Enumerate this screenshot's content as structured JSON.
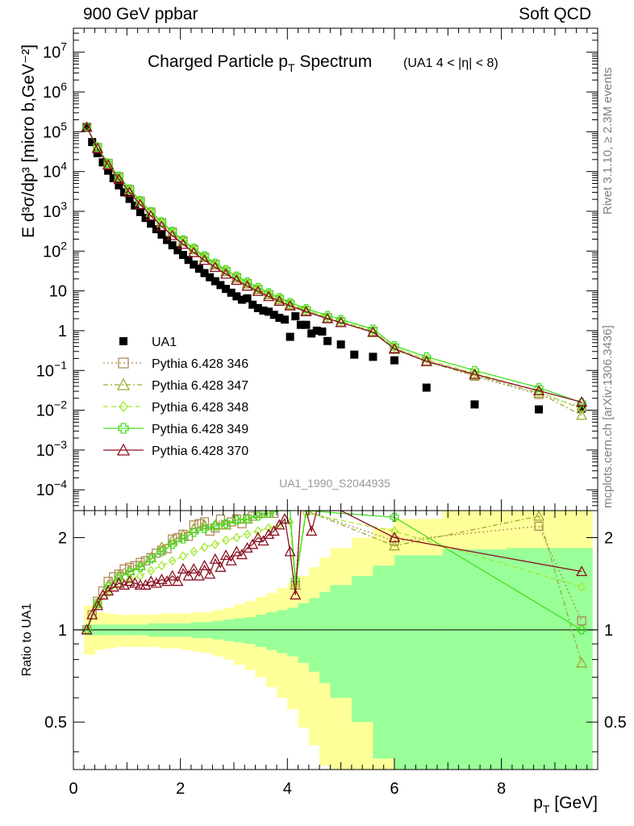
{
  "header": {
    "left": "900 GeV ppbar",
    "right": "Soft QCD"
  },
  "side_labels": {
    "rivet": "Rivet 3.1.10, ≥ 2.3M events",
    "mcplots": "mcplots.cern.ch [arXiv:1306.3436]"
  },
  "chart_data": [
    {
      "type": "scatter",
      "title": "Charged Particle p_T Spectrum",
      "subtitle": "(UA1   4 < |η| < 8)",
      "watermark": "UA1_1990_S2044935",
      "ylabel": "E d³σ/dp³ [micro b,GeV⁻²]",
      "yscale": "log",
      "xlim": [
        0,
        9.8
      ],
      "ylim": [
        3e-05,
        40000000.0
      ],
      "legend_position": "lower-left",
      "y_ticks": [
        {
          "v": 0.0001,
          "m": "10",
          "e": "−4"
        },
        {
          "v": 0.001,
          "m": "10",
          "e": "−3"
        },
        {
          "v": 0.01,
          "m": "10",
          "e": "−2"
        },
        {
          "v": 0.1,
          "m": "10",
          "e": "−1"
        },
        {
          "v": 1,
          "m": "1",
          "e": ""
        },
        {
          "v": 10,
          "m": "10",
          "e": ""
        },
        {
          "v": 100,
          "m": "10",
          "e": "2"
        },
        {
          "v": 1000,
          "m": "10",
          "e": "3"
        },
        {
          "v": 10000.0,
          "m": "10",
          "e": "4"
        },
        {
          "v": 100000.0,
          "m": "10",
          "e": "5"
        },
        {
          "v": 1000000.0,
          "m": "10",
          "e": "6"
        },
        {
          "v": 10000000.0,
          "m": "10",
          "e": "7"
        }
      ],
      "series": [
        {
          "name": "UA1",
          "marker": "filled-square",
          "color": "#000000",
          "x": [
            0.25,
            0.35,
            0.45,
            0.55,
            0.65,
            0.75,
            0.85,
            0.95,
            1.05,
            1.15,
            1.25,
            1.35,
            1.45,
            1.55,
            1.65,
            1.75,
            1.85,
            1.95,
            2.05,
            2.15,
            2.25,
            2.35,
            2.45,
            2.55,
            2.65,
            2.75,
            2.85,
            2.95,
            3.05,
            3.15,
            3.25,
            3.35,
            3.45,
            3.55,
            3.65,
            3.75,
            3.85,
            3.95,
            4.05,
            4.15,
            4.25,
            4.35,
            4.45,
            4.55,
            4.65,
            4.75,
            5.0,
            5.25,
            5.6,
            6.0,
            6.6,
            7.5,
            8.7,
            9.5
          ],
          "y": [
            130000,
            55000,
            29000,
            17000,
            10500,
            6800,
            4500,
            3000,
            2050,
            1400,
            960,
            680,
            490,
            355,
            260,
            190,
            140,
            105,
            80,
            60,
            46,
            36,
            28,
            22,
            17.5,
            14,
            11.2,
            9.0,
            7.3,
            6.0,
            6.5,
            4.5,
            3.7,
            3.2,
            3.0,
            2.5,
            2.1,
            1.9,
            0.7,
            2.3,
            1.4,
            1.4,
            0.85,
            1.0,
            0.95,
            0.55,
            0.45,
            0.25,
            0.22,
            0.18,
            0.037,
            0.014,
            0.0105,
            0.011
          ]
        },
        {
          "name": "Pythia 6.428 346",
          "marker": "open-square",
          "line": "dotted",
          "color": "#b08a58",
          "x": [
            0.25,
            0.45,
            0.65,
            0.85,
            1.05,
            1.25,
            1.45,
            1.65,
            1.85,
            2.05,
            2.25,
            2.45,
            2.65,
            2.85,
            3.05,
            3.25,
            3.45,
            3.65,
            3.85,
            4.05,
            4.35,
            4.75,
            5.0,
            5.6,
            6.0,
            6.6,
            7.5,
            8.7,
            9.5
          ],
          "y": [
            130000,
            40000,
            16000,
            7400,
            3550,
            1800,
            950,
            520,
            300,
            180,
            110,
            70,
            46,
            31,
            21.5,
            15.2,
            11,
            8.1,
            6.1,
            4.6,
            3.2,
            2.1,
            1.65,
            0.95,
            0.36,
            0.17,
            0.072,
            0.025,
            0.012
          ]
        },
        {
          "name": "Pythia 6.428 347",
          "marker": "open-triangle",
          "line": "dash-dot",
          "color": "#9aaa32",
          "x": [
            0.25,
            0.45,
            0.65,
            0.85,
            1.05,
            1.25,
            1.45,
            1.65,
            1.85,
            2.05,
            2.25,
            2.45,
            2.65,
            2.85,
            3.05,
            3.25,
            3.45,
            3.65,
            3.85,
            4.05,
            4.35,
            4.75,
            5.0,
            5.6,
            6.0,
            6.6,
            7.5,
            8.7,
            9.5
          ],
          "y": [
            130000,
            40000,
            15500,
            7200,
            3450,
            1750,
            930,
            510,
            295,
            176,
            108,
            69,
            45,
            30.5,
            21,
            15,
            10.8,
            8.0,
            6.0,
            4.5,
            3.15,
            2.05,
            1.6,
            0.9,
            0.34,
            0.165,
            0.075,
            0.027,
            0.0075
          ]
        },
        {
          "name": "Pythia 6.428 348",
          "marker": "open-diamond",
          "line": "dashed",
          "color": "#a2e830",
          "x": [
            0.25,
            0.45,
            0.65,
            0.85,
            1.05,
            1.25,
            1.45,
            1.65,
            1.85,
            2.05,
            2.25,
            2.45,
            2.65,
            2.85,
            3.05,
            3.25,
            3.45,
            3.65,
            3.85,
            4.05,
            4.35,
            4.75,
            5.0,
            5.6,
            6.0,
            6.6,
            7.5,
            8.7,
            9.5
          ],
          "y": [
            130000,
            40500,
            15800,
            7300,
            3500,
            1780,
            940,
            515,
            298,
            178,
            110,
            71,
            47,
            32,
            22,
            15.8,
            11.4,
            8.5,
            6.4,
            4.8,
            3.35,
            2.2,
            1.75,
            1.0,
            0.38,
            0.19,
            0.085,
            0.03,
            0.0105
          ]
        },
        {
          "name": "Pythia 6.428 349",
          "marker": "open-cross",
          "line": "solid",
          "color": "#44e020",
          "x": [
            0.25,
            0.45,
            0.65,
            0.85,
            1.05,
            1.25,
            1.45,
            1.65,
            1.85,
            2.05,
            2.25,
            2.45,
            2.65,
            2.85,
            3.05,
            3.25,
            3.45,
            3.65,
            3.85,
            4.05,
            4.35,
            4.75,
            5.0,
            5.6,
            6.0,
            6.6,
            7.5,
            8.7,
            9.5
          ],
          "y": [
            130000,
            41000,
            16200,
            7600,
            3650,
            1850,
            980,
            540,
            315,
            190,
            118,
            76,
            50,
            34,
            23.5,
            16.8,
            12.2,
            9.0,
            6.8,
            5.1,
            3.6,
            2.4,
            1.9,
            1.1,
            0.42,
            0.22,
            0.1,
            0.037,
            0.0155
          ]
        },
        {
          "name": "Pythia 6.428 370",
          "marker": "open-triangle",
          "line": "solid",
          "color": "#8a1020",
          "x": [
            0.25,
            0.45,
            0.65,
            0.85,
            1.05,
            1.25,
            1.45,
            1.65,
            1.85,
            2.05,
            2.25,
            2.45,
            2.65,
            2.85,
            3.05,
            3.25,
            3.45,
            3.65,
            3.85,
            4.05,
            4.35,
            4.75,
            5.0,
            5.6,
            6.0,
            6.6,
            7.5,
            8.7,
            9.5
          ],
          "y": [
            130000,
            38000,
            14500,
            6400,
            3000,
            1480,
            770,
            420,
            245,
            148,
            92,
            59,
            39,
            26.5,
            18.5,
            13.2,
            9.7,
            7.2,
            5.5,
            4.2,
            3.0,
            2.0,
            1.6,
            0.92,
            0.35,
            0.17,
            0.08,
            0.031,
            0.016
          ]
        }
      ]
    },
    {
      "type": "line",
      "ylabel": "Ratio to UA1",
      "xlabel": "p_T [GeV]",
      "xlim": [
        0,
        9.8
      ],
      "ylim": [
        0.35,
        2.45
      ],
      "yscale": "log",
      "x_ticks": [
        0,
        2,
        4,
        6,
        8
      ],
      "y_ticks": [
        0.5,
        1,
        2
      ],
      "band_edges": [
        0.2,
        0.4,
        0.6,
        0.8,
        1.0,
        1.2,
        1.4,
        1.6,
        1.8,
        2.0,
        2.2,
        2.4,
        2.6,
        2.8,
        3.0,
        3.2,
        3.4,
        3.6,
        3.8,
        4.0,
        4.2,
        4.4,
        4.6,
        4.8,
        5.2,
        5.6,
        6.0,
        6.9,
        8.1,
        9.7
      ],
      "band_inner_up": [
        1.04,
        1.04,
        1.04,
        1.04,
        1.04,
        1.04,
        1.05,
        1.05,
        1.05,
        1.05,
        1.06,
        1.06,
        1.07,
        1.08,
        1.09,
        1.1,
        1.12,
        1.14,
        1.16,
        1.18,
        1.22,
        1.27,
        1.33,
        1.4,
        1.5,
        1.62,
        1.75,
        1.83,
        1.85
      ],
      "band_inner_dn": [
        0.96,
        0.96,
        0.96,
        0.96,
        0.96,
        0.96,
        0.95,
        0.95,
        0.95,
        0.95,
        0.94,
        0.94,
        0.93,
        0.92,
        0.91,
        0.9,
        0.88,
        0.86,
        0.84,
        0.82,
        0.78,
        0.73,
        0.67,
        0.6,
        0.5,
        0.38,
        0.3,
        0.25,
        0.25
      ],
      "band_outer_up": [
        1.2,
        1.14,
        1.13,
        1.12,
        1.12,
        1.12,
        1.12,
        1.13,
        1.13,
        1.13,
        1.14,
        1.14,
        1.16,
        1.18,
        1.21,
        1.24,
        1.28,
        1.32,
        1.37,
        1.42,
        1.5,
        1.6,
        1.72,
        1.85,
        2.0,
        2.15,
        2.3,
        2.5,
        2.5
      ],
      "band_outer_dn": [
        0.83,
        0.86,
        0.87,
        0.88,
        0.88,
        0.88,
        0.88,
        0.87,
        0.87,
        0.86,
        0.85,
        0.84,
        0.82,
        0.8,
        0.77,
        0.74,
        0.7,
        0.65,
        0.6,
        0.55,
        0.48,
        0.42,
        0.36,
        0.3,
        0.25,
        0.25,
        0.25,
        0.25,
        0.25
      ],
      "band_inner_color": "#99ff99",
      "band_outer_color": "#ffff99",
      "series": [
        {
          "name": "Pythia 6.428 346",
          "x": [
            0.25,
            0.35,
            0.45,
            0.55,
            0.65,
            0.75,
            0.85,
            0.95,
            1.05,
            1.15,
            1.25,
            1.35,
            1.45,
            1.55,
            1.65,
            1.75,
            1.85,
            1.95,
            2.05,
            2.15,
            2.25,
            2.35,
            2.45,
            2.55,
            2.65,
            2.75,
            2.85,
            2.95,
            3.05,
            3.15,
            3.25,
            3.35,
            3.45,
            3.55,
            3.65,
            3.75,
            3.85,
            3.95,
            4.05,
            4.15,
            4.25,
            4.35,
            6.0,
            8.7,
            9.5
          ],
          "y": [
            1.0,
            1.12,
            1.24,
            1.34,
            1.44,
            1.49,
            1.52,
            1.58,
            1.6,
            1.62,
            1.66,
            1.68,
            1.72,
            1.78,
            1.82,
            1.84,
            1.98,
            2.0,
            2.05,
            2.02,
            2.2,
            2.22,
            2.25,
            2.1,
            2.15,
            2.3,
            2.2,
            2.25,
            2.3,
            2.22,
            2.3,
            2.35,
            2.4,
            2.4,
            2.4,
            2.4,
            2.45,
            2.45,
            2.45,
            1.4,
            2.45,
            2.45,
            1.95,
            2.18,
            1.07
          ]
        },
        {
          "name": "Pythia 6.428 347",
          "x": [
            0.25,
            0.45,
            0.65,
            0.85,
            1.05,
            1.25,
            1.45,
            1.65,
            1.85,
            2.05,
            2.25,
            2.45,
            2.65,
            2.85,
            3.05,
            3.25,
            3.45,
            3.65,
            3.85,
            4.05,
            4.15,
            4.35,
            6.0,
            8.7,
            9.5
          ],
          "y": [
            1.0,
            1.22,
            1.4,
            1.5,
            1.56,
            1.62,
            1.72,
            1.86,
            1.96,
            2.04,
            2.14,
            2.2,
            2.2,
            2.2,
            2.3,
            2.3,
            2.4,
            2.4,
            2.45,
            2.45,
            1.4,
            2.45,
            1.88,
            2.35,
            0.78
          ]
        },
        {
          "name": "Pythia 6.428 348",
          "x": [
            0.25,
            0.45,
            0.65,
            0.85,
            1.05,
            1.25,
            1.45,
            1.65,
            1.85,
            2.05,
            2.25,
            2.45,
            2.65,
            2.85,
            3.05,
            3.25,
            3.45,
            3.65,
            3.85,
            4.05,
            4.15,
            4.35,
            6.0,
            9.5
          ],
          "y": [
            1.0,
            1.2,
            1.32,
            1.42,
            1.46,
            1.5,
            1.56,
            1.62,
            1.68,
            1.74,
            1.8,
            1.86,
            1.9,
            1.96,
            2.0,
            2.05,
            2.1,
            2.15,
            2.2,
            2.25,
            1.4,
            2.4,
            2.1,
            1.38
          ]
        },
        {
          "name": "Pythia 6.428 349",
          "x": [
            0.25,
            0.45,
            0.65,
            0.85,
            1.05,
            1.25,
            1.45,
            1.65,
            1.85,
            2.05,
            2.25,
            2.45,
            2.65,
            2.85,
            3.05,
            3.25,
            3.45,
            3.65,
            3.85,
            4.05,
            4.15,
            4.35,
            6.0,
            9.5
          ],
          "y": [
            1.0,
            1.22,
            1.38,
            1.48,
            1.54,
            1.6,
            1.7,
            1.8,
            1.9,
            1.98,
            2.08,
            2.14,
            2.18,
            2.22,
            2.28,
            2.3,
            2.35,
            2.4,
            2.45,
            2.45,
            1.45,
            2.45,
            2.33,
            1.0
          ]
        },
        {
          "name": "Pythia 6.428 370",
          "x": [
            0.25,
            0.35,
            0.45,
            0.55,
            0.65,
            0.75,
            0.85,
            0.95,
            1.05,
            1.15,
            1.25,
            1.35,
            1.45,
            1.55,
            1.65,
            1.75,
            1.85,
            1.95,
            2.05,
            2.15,
            2.25,
            2.35,
            2.45,
            2.55,
            2.65,
            2.75,
            2.85,
            2.95,
            3.05,
            3.15,
            3.25,
            3.35,
            3.45,
            3.55,
            3.65,
            3.75,
            3.85,
            3.95,
            4.05,
            4.15,
            4.25,
            4.35,
            4.45,
            4.55,
            4.65,
            4.75,
            5.0,
            6.0,
            9.5
          ],
          "y": [
            1.0,
            1.12,
            1.2,
            1.3,
            1.34,
            1.38,
            1.42,
            1.4,
            1.44,
            1.42,
            1.4,
            1.4,
            1.44,
            1.42,
            1.46,
            1.44,
            1.5,
            1.44,
            1.58,
            1.5,
            1.58,
            1.5,
            1.62,
            1.52,
            1.7,
            1.6,
            1.75,
            1.68,
            1.8,
            1.76,
            1.85,
            1.9,
            2.0,
            1.95,
            2.05,
            2.1,
            2.2,
            2.3,
            1.8,
            1.3,
            2.45,
            2.45,
            2.1,
            2.45,
            2.45,
            2.45,
            2.45,
            2.0,
            1.55
          ]
        }
      ]
    }
  ]
}
